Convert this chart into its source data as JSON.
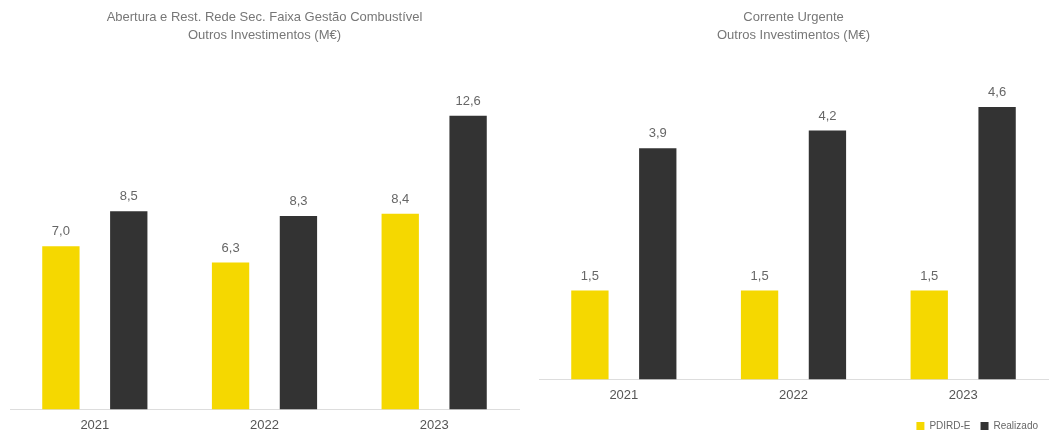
{
  "chart_data": [
    {
      "type": "bar",
      "title": "Abertura e Rest. Rede Sec. Faixa Gestão Combustível",
      "subtitle": "Outros Investimentos (M€)",
      "categories": [
        "2021",
        "2022",
        "2023"
      ],
      "series": [
        {
          "color": "#f5d800",
          "values": [
            7.0,
            6.3,
            8.4
          ],
          "value_labels": [
            "7,0",
            "6,3",
            "8,4"
          ]
        },
        {
          "color": "#333333",
          "values": [
            8.5,
            8.3,
            12.6
          ],
          "value_labels": [
            "8,5",
            "8,3",
            "12,6"
          ]
        }
      ],
      "legend": false,
      "grid": false,
      "tick_labels": "x"
    },
    {
      "type": "bar",
      "title": "Corrente Urgente",
      "subtitle": "Outros Investimentos (M€)",
      "categories": [
        "2021",
        "2022",
        "2023"
      ],
      "series": [
        {
          "name": "PDIRD-E",
          "color": "#f5d800",
          "values": [
            1.5,
            1.5,
            1.5
          ],
          "value_labels": [
            "1,5",
            "1,5",
            "1,5"
          ]
        },
        {
          "name": "Realizado",
          "color": "#333333",
          "values": [
            3.9,
            4.2,
            4.6
          ],
          "value_labels": [
            "3,9",
            "4,2",
            "4,6"
          ]
        }
      ],
      "legend": "bottom right",
      "grid": false,
      "tick_labels": "x"
    }
  ]
}
